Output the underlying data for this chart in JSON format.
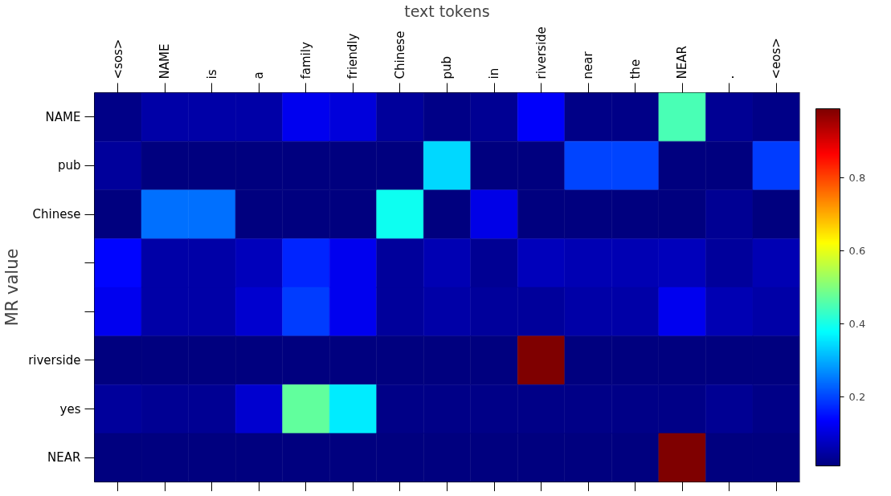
{
  "chart_data": {
    "type": "heatmap",
    "xlabel": "text tokens",
    "ylabel": "MR value",
    "categories": [
      "<sos>",
      "NAME",
      "is",
      "a",
      "family",
      "friendly",
      "Chinese",
      "pub",
      "in",
      "riverside",
      "near",
      "the",
      "NEAR",
      ".",
      "<eos>"
    ],
    "y_categories": [
      "NAME",
      "pub",
      "Chinese",
      null,
      null,
      "riverside",
      "yes",
      "NEAR"
    ],
    "cells": [
      [
        0.02,
        0.05,
        0.05,
        0.05,
        0.12,
        0.1,
        0.04,
        0.02,
        0.03,
        0.13,
        0.02,
        0.02,
        0.45,
        0.03,
        0.02
      ],
      [
        0.04,
        0.01,
        0.01,
        0.01,
        0.01,
        0.01,
        0.01,
        0.34,
        0.01,
        0.01,
        0.2,
        0.2,
        0.01,
        0.01,
        0.19
      ],
      [
        0.01,
        0.24,
        0.24,
        0.01,
        0.01,
        0.01,
        0.39,
        0.01,
        0.11,
        0.01,
        0.01,
        0.01,
        0.01,
        0.03,
        0.01
      ],
      [
        0.14,
        0.05,
        0.05,
        0.07,
        0.17,
        0.12,
        0.04,
        0.06,
        0.03,
        0.07,
        0.06,
        0.06,
        0.07,
        0.04,
        0.06
      ],
      [
        0.12,
        0.05,
        0.05,
        0.09,
        0.19,
        0.12,
        0.04,
        0.05,
        0.04,
        0.04,
        0.05,
        0.05,
        0.12,
        0.06,
        0.05
      ],
      [
        0.01,
        0.01,
        0.01,
        0.01,
        0.01,
        0.01,
        0.01,
        0.01,
        0.01,
        0.99,
        0.01,
        0.01,
        0.01,
        0.01,
        0.01
      ],
      [
        0.04,
        0.03,
        0.03,
        0.09,
        0.47,
        0.36,
        0.02,
        0.02,
        0.02,
        0.02,
        0.02,
        0.02,
        0.02,
        0.03,
        0.02
      ],
      [
        0.01,
        0.01,
        0.01,
        0.01,
        0.01,
        0.01,
        0.01,
        0.01,
        0.01,
        0.01,
        0.01,
        0.01,
        0.99,
        0.01,
        0.01
      ]
    ],
    "clim": [
      0.01,
      0.99
    ],
    "cticks": [
      0.2,
      0.4,
      0.6,
      0.8
    ]
  }
}
